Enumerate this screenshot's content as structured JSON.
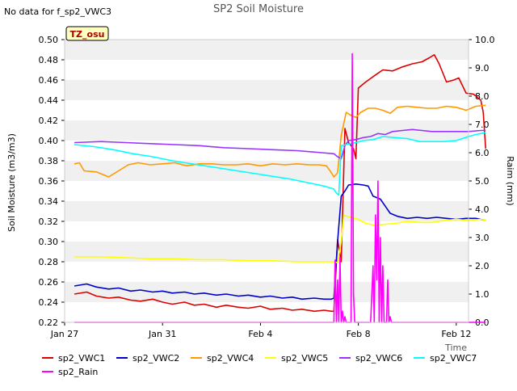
{
  "chart_data": {
    "type": "line",
    "title": "SP2 Soil Moisture",
    "no_data_note": "No data for f_sp2_VWC3",
    "site_label": "TZ_osu",
    "xlabel": "Time",
    "ylabel": "Soil Moisture (m3/m3)",
    "y2label": "Raim (mm)",
    "xlim": [
      0,
      16.5
    ],
    "ylim": [
      0.22,
      0.5
    ],
    "y2lim": [
      0.0,
      10.0
    ],
    "x_ticks": [
      {
        "x": 0,
        "label": "Jan 27"
      },
      {
        "x": 4,
        "label": "Jan 31"
      },
      {
        "x": 8,
        "label": "Feb 4"
      },
      {
        "x": 12,
        "label": "Feb 8"
      },
      {
        "x": 16,
        "label": "Feb 12"
      }
    ],
    "y_ticks": [
      "0.22",
      "0.24",
      "0.26",
      "0.28",
      "0.30",
      "0.32",
      "0.34",
      "0.36",
      "0.38",
      "0.40",
      "0.42",
      "0.44",
      "0.46",
      "0.48",
      "0.50"
    ],
    "y2_ticks": [
      "0.0",
      "1.0",
      "2.0",
      "3.0",
      "4.0",
      "5.0",
      "6.0",
      "7.0",
      "8.0",
      "9.0",
      "10.0"
    ],
    "series": [
      {
        "name": "sp2_VWC1",
        "color": "#dd0000",
        "axis": "left",
        "x": [
          0.4,
          0.9,
          1.3,
          1.8,
          2.2,
          2.7,
          3.1,
          3.6,
          4.0,
          4.4,
          4.9,
          5.3,
          5.7,
          6.2,
          6.6,
          7.1,
          7.5,
          8.0,
          8.4,
          8.9,
          9.3,
          9.7,
          10.2,
          10.6,
          10.9,
          11.0,
          11.15,
          11.3,
          11.45,
          11.6,
          11.8,
          11.9,
          12.0,
          12.3,
          12.7,
          13.0,
          13.4,
          13.8,
          14.2,
          14.6,
          14.9,
          15.1,
          15.3,
          15.6,
          15.9,
          16.1,
          16.4,
          16.7,
          17.0,
          17.1,
          17.2
        ],
        "y": [
          0.248,
          0.25,
          0.246,
          0.244,
          0.245,
          0.242,
          0.241,
          0.243,
          0.24,
          0.238,
          0.24,
          0.237,
          0.238,
          0.235,
          0.237,
          0.235,
          0.234,
          0.236,
          0.233,
          0.234,
          0.232,
          0.233,
          0.231,
          0.232,
          0.231,
          0.231,
          0.302,
          0.28,
          0.412,
          0.398,
          0.392,
          0.382,
          0.452,
          0.458,
          0.465,
          0.47,
          0.469,
          0.473,
          0.476,
          0.478,
          0.482,
          0.485,
          0.476,
          0.458,
          0.46,
          0.462,
          0.447,
          0.446,
          0.44,
          0.428,
          0.392
        ]
      },
      {
        "name": "sp2_VWC2",
        "color": "#0000cc",
        "axis": "left",
        "x": [
          0.4,
          0.9,
          1.3,
          1.8,
          2.2,
          2.7,
          3.1,
          3.6,
          4.0,
          4.4,
          4.9,
          5.3,
          5.7,
          6.2,
          6.6,
          7.1,
          7.5,
          8.0,
          8.4,
          8.9,
          9.3,
          9.7,
          10.2,
          10.6,
          10.9,
          11.0,
          11.15,
          11.3,
          11.45,
          11.6,
          11.9,
          12.2,
          12.4,
          12.6,
          12.9,
          13.1,
          13.3,
          13.6,
          14.0,
          14.4,
          14.8,
          15.2,
          15.6,
          16.0,
          16.4,
          16.8,
          17.2
        ],
        "y": [
          0.256,
          0.258,
          0.255,
          0.253,
          0.254,
          0.251,
          0.252,
          0.25,
          0.251,
          0.249,
          0.25,
          0.248,
          0.249,
          0.247,
          0.248,
          0.246,
          0.247,
          0.245,
          0.246,
          0.244,
          0.245,
          0.243,
          0.244,
          0.243,
          0.243,
          0.244,
          0.3,
          0.345,
          0.35,
          0.356,
          0.357,
          0.356,
          0.355,
          0.345,
          0.342,
          0.335,
          0.328,
          0.325,
          0.323,
          0.324,
          0.323,
          0.324,
          0.323,
          0.322,
          0.323,
          0.323,
          0.321
        ]
      },
      {
        "name": "sp2_VWC4",
        "color": "#ff9900",
        "axis": "left",
        "x": [
          0.4,
          0.6,
          0.8,
          1.3,
          1.8,
          2.2,
          2.6,
          3.0,
          3.5,
          4.0,
          4.5,
          5.0,
          5.5,
          6.0,
          6.5,
          7.0,
          7.5,
          8.0,
          8.5,
          9.0,
          9.5,
          10.0,
          10.4,
          10.7,
          10.9,
          11.0,
          11.15,
          11.3,
          11.5,
          11.7,
          11.9,
          12.1,
          12.4,
          12.7,
          13.0,
          13.3,
          13.6,
          14.0,
          14.4,
          14.8,
          15.2,
          15.6,
          16.0,
          16.4,
          16.8,
          17.2
        ],
        "y": [
          0.377,
          0.378,
          0.37,
          0.369,
          0.364,
          0.37,
          0.376,
          0.378,
          0.376,
          0.377,
          0.378,
          0.375,
          0.377,
          0.377,
          0.376,
          0.376,
          0.377,
          0.375,
          0.377,
          0.376,
          0.377,
          0.376,
          0.376,
          0.375,
          0.368,
          0.364,
          0.368,
          0.405,
          0.428,
          0.425,
          0.423,
          0.428,
          0.432,
          0.432,
          0.43,
          0.427,
          0.433,
          0.434,
          0.433,
          0.432,
          0.432,
          0.434,
          0.433,
          0.43,
          0.434,
          0.435
        ]
      },
      {
        "name": "sp2_VWC5",
        "color": "#ffff00",
        "axis": "left",
        "x": [
          0.4,
          1.5,
          2.5,
          3.5,
          4.5,
          5.5,
          6.5,
          7.5,
          8.5,
          9.5,
          10.5,
          11.0,
          11.15,
          11.3,
          11.4,
          11.7,
          12.0,
          12.3,
          12.7,
          13.0,
          13.5,
          14.0,
          14.5,
          15.0,
          15.5,
          16.0,
          16.5,
          17.0,
          17.2
        ],
        "y": [
          0.285,
          0.285,
          0.284,
          0.283,
          0.283,
          0.282,
          0.282,
          0.281,
          0.281,
          0.28,
          0.28,
          0.28,
          0.279,
          0.3,
          0.326,
          0.324,
          0.322,
          0.318,
          0.316,
          0.317,
          0.318,
          0.32,
          0.319,
          0.319,
          0.321,
          0.322,
          0.321,
          0.322,
          0.321
        ]
      },
      {
        "name": "sp2_VWC6",
        "color": "#9933ff",
        "axis": "left",
        "x": [
          0.4,
          1.5,
          2.5,
          3.5,
          4.5,
          5.5,
          6.5,
          7.5,
          8.5,
          9.5,
          10.5,
          11.0,
          11.15,
          11.3,
          11.45,
          11.6,
          11.9,
          12.2,
          12.5,
          12.8,
          13.1,
          13.4,
          13.8,
          14.2,
          14.6,
          15.0,
          15.5,
          16.0,
          16.5,
          17.0,
          17.2
        ],
        "y": [
          0.398,
          0.399,
          0.398,
          0.397,
          0.396,
          0.395,
          0.393,
          0.392,
          0.391,
          0.39,
          0.388,
          0.387,
          0.384,
          0.382,
          0.395,
          0.4,
          0.401,
          0.403,
          0.404,
          0.407,
          0.406,
          0.409,
          0.41,
          0.411,
          0.41,
          0.409,
          0.409,
          0.409,
          0.409,
          0.41,
          0.41
        ]
      },
      {
        "name": "sp2_VWC7",
        "color": "#00ffff",
        "axis": "left",
        "x": [
          0.4,
          1.2,
          2.0,
          2.8,
          3.6,
          4.4,
          5.2,
          6.0,
          6.8,
          7.6,
          8.4,
          9.2,
          10.0,
          10.6,
          11.0,
          11.1,
          11.2,
          11.3,
          11.5,
          11.7,
          11.9,
          12.2,
          12.6,
          13.0,
          13.5,
          14.0,
          14.5,
          15.0,
          15.5,
          16.0,
          16.5,
          16.8,
          17.0,
          17.2
        ],
        "y": [
          0.396,
          0.394,
          0.391,
          0.387,
          0.384,
          0.38,
          0.377,
          0.374,
          0.371,
          0.368,
          0.365,
          0.362,
          0.358,
          0.355,
          0.352,
          0.348,
          0.346,
          0.395,
          0.396,
          0.397,
          0.398,
          0.4,
          0.401,
          0.404,
          0.403,
          0.402,
          0.399,
          0.399,
          0.399,
          0.4,
          0.404,
          0.406,
          0.407,
          0.408
        ]
      },
      {
        "name": "sp2_Rain",
        "color": "#ff00ff",
        "axis": "right",
        "x": [
          0.4,
          10.9,
          11.0,
          11.05,
          11.1,
          11.15,
          11.2,
          11.25,
          11.3,
          11.35,
          11.4,
          11.45,
          11.5,
          11.55,
          11.6,
          11.65,
          11.7,
          11.75,
          11.8,
          11.85,
          11.9,
          11.95,
          12.0,
          12.05,
          12.1,
          12.15,
          12.2,
          12.3,
          12.4,
          12.5,
          12.6,
          12.65,
          12.7,
          12.75,
          12.8,
          12.85,
          12.9,
          12.95,
          13.0,
          13.05,
          13.1,
          13.15,
          13.2,
          13.25,
          13.3,
          13.35,
          13.4,
          13.5,
          17.2
        ],
        "y": [
          0.0,
          0.0,
          0.0,
          2.2,
          0.0,
          1.5,
          0.0,
          2.3,
          0.0,
          0.4,
          0.0,
          0.2,
          0.0,
          0.0,
          0.0,
          0.0,
          0.0,
          9.5,
          1.0,
          0.0,
          0.0,
          0.0,
          0.0,
          0.0,
          0.0,
          0.0,
          0.0,
          0.0,
          0.0,
          0.0,
          2.0,
          0.0,
          3.8,
          1.5,
          5.0,
          0.0,
          3.0,
          0.0,
          2.0,
          0.0,
          0.0,
          0.0,
          1.5,
          0.0,
          0.2,
          0.0,
          0.0,
          0.0,
          0.0
        ]
      }
    ]
  }
}
